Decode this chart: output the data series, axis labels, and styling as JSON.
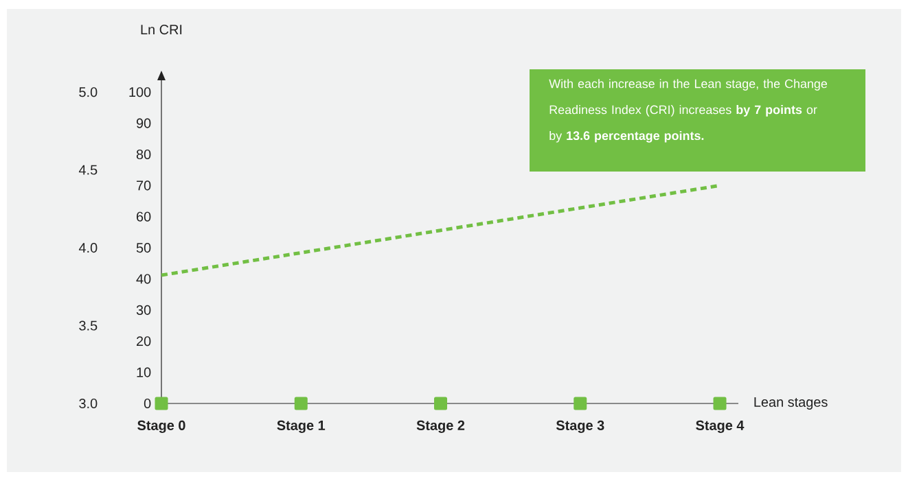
{
  "chart_data": {
    "type": "line",
    "categories": [
      "Stage 0",
      "Stage 1",
      "Stage 2",
      "Stage 3",
      "Stage 4"
    ],
    "xlabel": "Lean stages",
    "ylabel": "Ln CRI",
    "series": [
      {
        "color": "#72bf44",
        "line_style": "dashed",
        "marker": "none",
        "values": [
          41.2,
          48.4,
          55.6,
          62.8,
          70.0
        ]
      },
      {
        "type": "scatter",
        "color": "#72bf44",
        "marker": "square",
        "values": [
          0,
          0,
          0,
          0,
          0
        ]
      }
    ],
    "ylim": [
      0,
      106
    ],
    "yticks": [
      0,
      10,
      20,
      30,
      40,
      50,
      60,
      70,
      80,
      90,
      100
    ],
    "y2lim": [
      3.0,
      5.12
    ],
    "y2ticks": [
      {
        "value": 3.0,
        "label": "3.0"
      },
      {
        "value": 3.5,
        "label": "3.5"
      },
      {
        "value": 4.0,
        "label": "4.0"
      },
      {
        "value": 4.5,
        "label": "4.5"
      },
      {
        "value": 5.0,
        "label": "5.0"
      }
    ],
    "annotations": [
      "With each increase in the Lean stage, the Change Readiness Index (CRI) increases **by 7 points** or by **13.6 percentage points.**"
    ]
  }
}
